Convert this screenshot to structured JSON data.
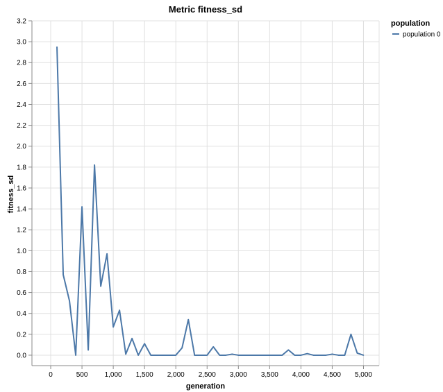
{
  "chart_data": {
    "type": "line",
    "title": "Metric fitness_sd",
    "xlabel": "generation",
    "ylabel": "fitness_sd",
    "xlim": [
      -300,
      5250
    ],
    "ylim": [
      -0.1,
      3.2
    ],
    "x_ticks": [
      0,
      500,
      1000,
      1500,
      2000,
      2500,
      3000,
      3500,
      4000,
      4500,
      5000
    ],
    "x_tick_labels": [
      "0",
      "500",
      "1,000",
      "1,500",
      "2,000",
      "2,500",
      "3,000",
      "3,500",
      "4,000",
      "4,500",
      "5,000"
    ],
    "y_ticks": [
      0.0,
      0.2,
      0.4,
      0.6,
      0.8,
      1.0,
      1.2,
      1.4,
      1.6,
      1.8,
      2.0,
      2.2,
      2.4,
      2.6,
      2.8,
      3.0,
      3.2
    ],
    "y_tick_labels": [
      "0.0",
      "0.2",
      "0.4",
      "0.6",
      "0.8",
      "1.0",
      "1.2",
      "1.4",
      "1.6",
      "1.8",
      "2.0",
      "2.2",
      "2.4",
      "2.6",
      "2.8",
      "3.0",
      "3.2"
    ],
    "grid": true,
    "legend": {
      "title": "population",
      "position": "top-right"
    },
    "series": [
      {
        "name": "population 0",
        "color": "#4c78a8",
        "x": [
          100,
          200,
          300,
          400,
          500,
          600,
          700,
          800,
          900,
          1000,
          1100,
          1200,
          1300,
          1400,
          1500,
          1600,
          1700,
          1800,
          1900,
          2000,
          2100,
          2200,
          2300,
          2400,
          2500,
          2600,
          2700,
          2800,
          2900,
          3000,
          3100,
          3200,
          3300,
          3400,
          3500,
          3600,
          3700,
          3800,
          3900,
          4000,
          4100,
          4200,
          4300,
          4400,
          4500,
          4600,
          4700,
          4800,
          4900,
          5000
        ],
        "y": [
          2.95,
          0.77,
          0.52,
          0.0,
          1.42,
          0.05,
          1.82,
          0.66,
          0.97,
          0.27,
          0.43,
          0.01,
          0.16,
          0.0,
          0.11,
          0.0,
          0.0,
          0.0,
          0.0,
          0.0,
          0.07,
          0.34,
          0.0,
          0.0,
          0.0,
          0.08,
          0.0,
          0.0,
          0.01,
          0.0,
          0.0,
          0.0,
          0.0,
          0.0,
          0.0,
          0.0,
          0.0,
          0.05,
          0.0,
          0.0,
          0.015,
          0.0,
          0.0,
          0.0,
          0.01,
          0.0,
          0.0,
          0.2,
          0.02,
          0.0
        ]
      }
    ]
  }
}
